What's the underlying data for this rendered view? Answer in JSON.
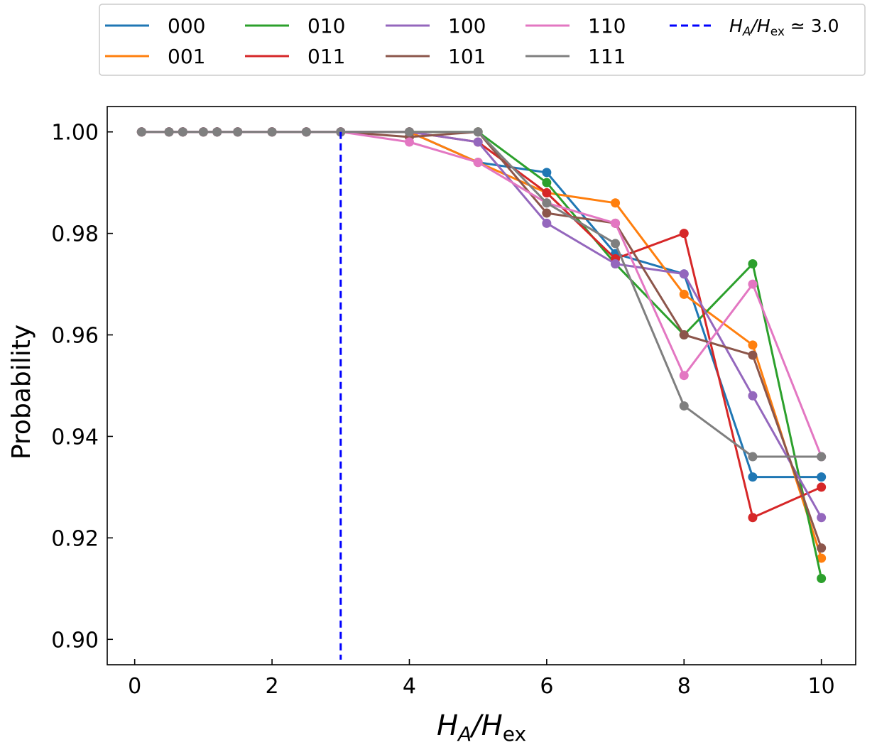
{
  "chart_data": {
    "type": "line",
    "title": "",
    "xlabel_main": "H",
    "xlabel_sub1": "A",
    "xlabel_sep": "/H",
    "xlabel_sub2": "ex",
    "ylabel": "Probability",
    "xlim": [
      -0.4,
      10.5
    ],
    "ylim": [
      0.895,
      1.005
    ],
    "xticks": [
      0,
      2,
      4,
      6,
      8,
      10
    ],
    "xtick_labels": [
      "0",
      "2",
      "4",
      "6",
      "8",
      "10"
    ],
    "yticks": [
      0.9,
      0.92,
      0.94,
      0.96,
      0.98,
      1.0
    ],
    "ytick_labels": [
      "0.90",
      "0.92",
      "0.94",
      "0.96",
      "0.98",
      "1.00"
    ],
    "grid": false,
    "legend_position": "top, outside plot",
    "x": [
      0.1,
      0.5,
      0.7,
      1.0,
      1.2,
      1.5,
      2.0,
      2.5,
      3.0,
      4.0,
      5.0,
      6.0,
      7.0,
      8.0,
      9.0,
      10.0
    ],
    "series": [
      {
        "name": "000",
        "color": "#1f77b4",
        "values": [
          1,
          1,
          1,
          1,
          1,
          1,
          1,
          1,
          1,
          1.0,
          0.994,
          0.992,
          0.976,
          0.972,
          0.932,
          0.932
        ]
      },
      {
        "name": "001",
        "color": "#ff7f0e",
        "values": [
          1,
          1,
          1,
          1,
          1,
          1,
          1,
          1,
          1,
          1.0,
          0.994,
          0.988,
          0.986,
          0.968,
          0.958,
          0.916
        ]
      },
      {
        "name": "010",
        "color": "#2ca02c",
        "values": [
          1,
          1,
          1,
          1,
          1,
          1,
          1,
          1,
          1,
          1.0,
          1.0,
          0.99,
          0.974,
          0.96,
          0.974,
          0.912
        ]
      },
      {
        "name": "011",
        "color": "#d62728",
        "values": [
          1,
          1,
          1,
          1,
          1,
          1,
          1,
          1,
          1,
          1.0,
          0.998,
          0.988,
          0.975,
          0.98,
          0.924,
          0.93
        ]
      },
      {
        "name": "100",
        "color": "#9467bd",
        "values": [
          1,
          1,
          1,
          1,
          1,
          1,
          1,
          1,
          1,
          1.0,
          0.998,
          0.982,
          0.974,
          0.972,
          0.948,
          0.924
        ]
      },
      {
        "name": "101",
        "color": "#8c564b",
        "values": [
          1,
          1,
          1,
          1,
          1,
          1,
          1,
          1,
          1,
          0.999,
          1.0,
          0.984,
          0.982,
          0.96,
          0.956,
          0.918
        ]
      },
      {
        "name": "110",
        "color": "#e377c2",
        "values": [
          1,
          1,
          1,
          1,
          1,
          1,
          1,
          1,
          1,
          0.998,
          0.994,
          0.986,
          0.982,
          0.952,
          0.97,
          0.936
        ]
      },
      {
        "name": "111",
        "color": "#7f7f7f",
        "values": [
          1,
          1,
          1,
          1,
          1,
          1,
          1,
          1,
          1,
          1.0,
          1.0,
          0.986,
          0.978,
          0.946,
          0.936,
          0.936
        ]
      }
    ],
    "vline": {
      "x": 3.0,
      "y_from": 0.896,
      "y_to": 1.0,
      "color": "#0000ff",
      "label_main": "H",
      "label_sub1": "A",
      "label_sep": "/H",
      "label_sub2": "ex",
      "label_tail": " ≃ 3.0"
    }
  }
}
